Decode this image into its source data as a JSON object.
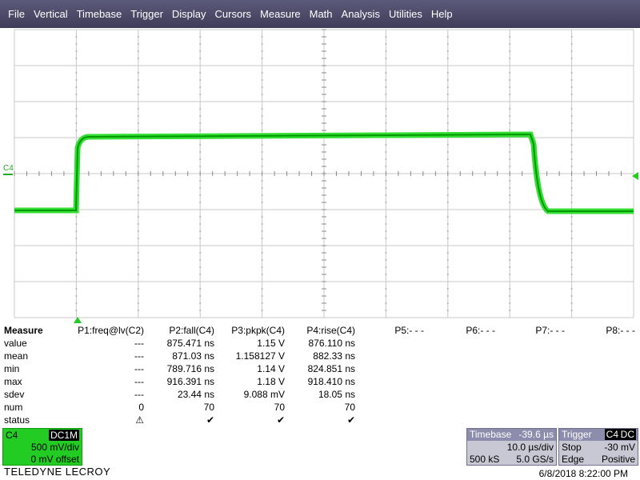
{
  "menu": [
    "File",
    "Vertical",
    "Timebase",
    "Trigger",
    "Display",
    "Cursors",
    "Measure",
    "Math",
    "Analysis",
    "Utilities",
    "Help"
  ],
  "channel_marker": "C4",
  "measure_table": {
    "header": [
      "Measure",
      "P1:freq@lv(C2)",
      "P2:fall(C4)",
      "P3:pkpk(C4)",
      "P4:rise(C4)",
      "P5:- - -",
      "P6:- - -",
      "P7:- - -",
      "P8:- - -"
    ],
    "rows": [
      [
        "value",
        "---",
        "875.471 ns",
        "1.15 V",
        "876.110 ns"
      ],
      [
        "mean",
        "---",
        "871.03 ns",
        "1.158127 V",
        "882.33 ns"
      ],
      [
        "min",
        "---",
        "789.716 ns",
        "1.14 V",
        "824.851 ns"
      ],
      [
        "max",
        "---",
        "916.391 ns",
        "1.18 V",
        "918.410 ns"
      ],
      [
        "sdev",
        "---",
        "23.44 ns",
        "9.088 mV",
        "18.05 ns"
      ],
      [
        "num",
        "0",
        "70",
        "70",
        "70"
      ],
      [
        "status",
        "⚠",
        "✔",
        "✔",
        "✔"
      ]
    ]
  },
  "channel_box": {
    "name": "C4",
    "coupling": "DC1M",
    "scale": "500 mV/div",
    "offset": "0 mV offset"
  },
  "brand": "TELEDYNE LECROY",
  "timebase": {
    "title": "Timebase",
    "delay": "-39.6 µs",
    "per_div": "10.0 µs/div",
    "samples": "500 kS",
    "rate": "5.0 GS/s"
  },
  "trigger": {
    "title": "Trigger",
    "source": "C4",
    "coupling": "DC",
    "mode": "Stop",
    "level": "-30 mV",
    "type": "Edge",
    "slope": "Positive"
  },
  "timestamp": "6/8/2018 8:22:00 PM"
}
